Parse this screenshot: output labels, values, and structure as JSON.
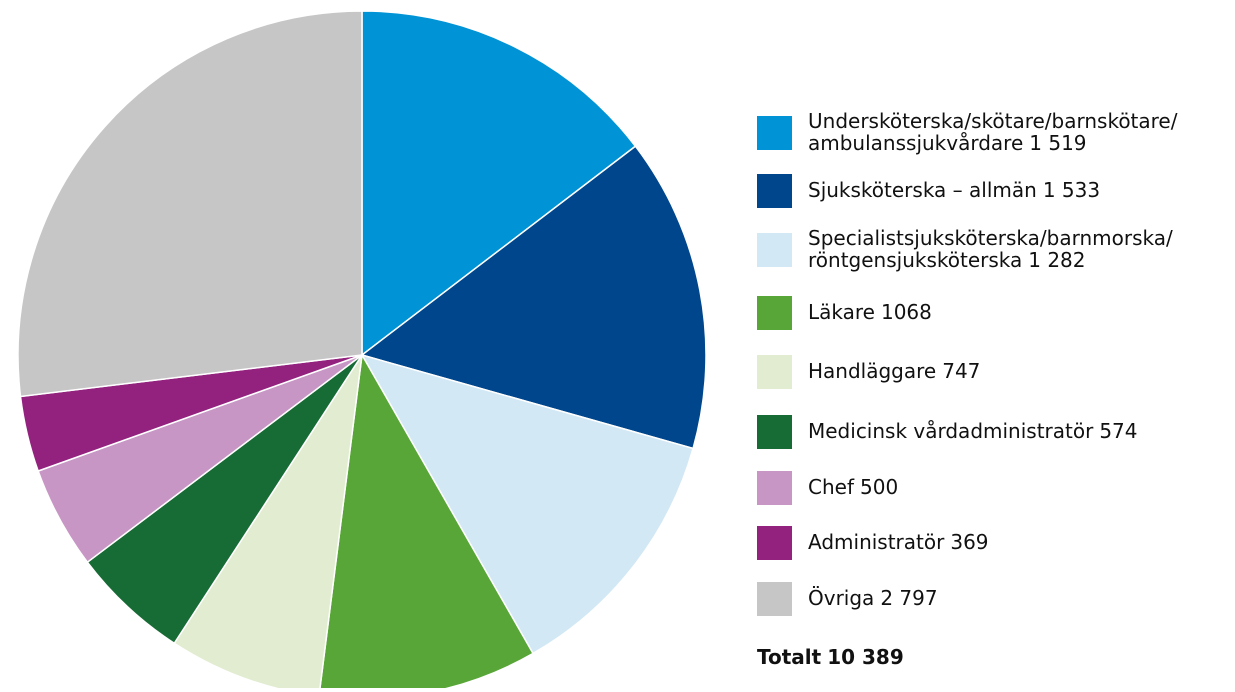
{
  "chart_data": {
    "type": "pie",
    "categories": [
      "Undersköterska/skötare/barnskötare/ambulanssjukvårdare",
      "Sjuksköterska – allmän",
      "Specialistsjuksköterska/barnmorska/röntgensjuksköterska",
      "Läkare",
      "Handläggare",
      "Medicinsk vårdadministratör",
      "Chef",
      "Administratör",
      "Övriga"
    ],
    "values": [
      1519,
      1533,
      1282,
      1068,
      747,
      574,
      500,
      369,
      2797
    ],
    "value_labels": [
      "1 519",
      "1 533",
      "1 282",
      "1068",
      "747",
      "574",
      "500",
      "369",
      "2 797"
    ],
    "colors": [
      "#0093d5",
      "#00468c",
      "#d2e8f5",
      "#57a637",
      "#e1ecd0",
      "#176b34",
      "#c896c5",
      "#93227e",
      "#c6c6c6"
    ],
    "total": {
      "label": "Totalt",
      "value": 10389,
      "value_label": "10 389"
    },
    "legend": "right"
  }
}
